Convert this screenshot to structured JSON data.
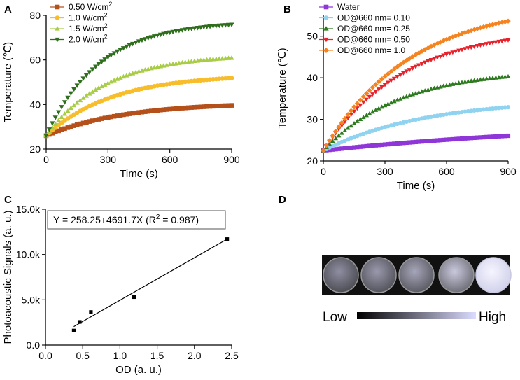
{
  "panel_labels": [
    "A",
    "B",
    "C",
    "D"
  ],
  "chart_data": [
    {
      "panel": "A",
      "type": "scatter",
      "xlabel": "Time (s)",
      "ylabel": "Temperature (℃)",
      "xlim": [
        0,
        900
      ],
      "ylim": [
        20,
        80
      ],
      "xticks": [
        0,
        300,
        600,
        900
      ],
      "yticks": [
        20,
        40,
        60,
        80
      ],
      "legend_position": "top-left",
      "series": [
        {
          "name": "0.50 W/cm",
          "sup": "2",
          "marker": "square",
          "color": "#b5501b",
          "start": 26,
          "end": 41,
          "tau": 380
        },
        {
          "name": "1.0 W/cm",
          "sup": "2",
          "marker": "circle",
          "color": "#f7bd2b",
          "start": 26,
          "end": 53.5,
          "tau": 320
        },
        {
          "name": "1.5 W/cm",
          "sup": "2",
          "marker": "triangle-up",
          "color": "#a9cc47",
          "start": 26,
          "end": 62.5,
          "tau": 290
        },
        {
          "name": "2.0 W/cm",
          "sup": "2",
          "marker": "triangle-down",
          "color": "#2f6e1d",
          "start": 26,
          "end": 77.5,
          "tau": 260
        }
      ]
    },
    {
      "panel": "B",
      "type": "scatter",
      "xlabel": "Time (s)",
      "ylabel": "Temperature (℃)",
      "xlim": [
        0,
        900
      ],
      "ylim": [
        20,
        55
      ],
      "xticks": [
        0,
        300,
        600,
        900
      ],
      "yticks": [
        20,
        30,
        40,
        50
      ],
      "legend_position": "top-left",
      "series": [
        {
          "name": "Water",
          "marker": "square",
          "color": "#8f36d9",
          "start": 22.5,
          "end": 30,
          "tau": 1400
        },
        {
          "name": "OD@660 nm= 0.10",
          "marker": "circle",
          "color": "#8fd3f0",
          "start": 22.5,
          "end": 35,
          "tau": 500
        },
        {
          "name": "OD@660 nm= 0.25",
          "marker": "triangle-up",
          "color": "#2d7a1f",
          "start": 22.5,
          "end": 42,
          "tau": 370
        },
        {
          "name": "OD@660 nm= 0.50",
          "marker": "triangle-down",
          "color": "#e8222a",
          "start": 22.5,
          "end": 52,
          "tau": 390
        },
        {
          "name": "OD@660 nm= 1.0",
          "marker": "diamond",
          "color": "#f5831f",
          "start": 22.5,
          "end": 58,
          "tau": 430
        }
      ]
    },
    {
      "panel": "C",
      "type": "scatter",
      "xlabel": "OD (a. u.)",
      "ylabel": "Photoacoustic Signals (a. u.)",
      "xlim": [
        0,
        2.5
      ],
      "ylim": [
        0,
        15000
      ],
      "xticks": [
        0.0,
        0.5,
        1.0,
        1.5,
        2.0,
        2.5
      ],
      "xtick_labels": [
        "0.0",
        "0.5",
        "1.0",
        "1.5",
        "2.0",
        "2.5"
      ],
      "yticks": [
        0,
        5000,
        10000,
        15000
      ],
      "ytick_labels": [
        "0.0",
        "5.0k",
        "10.0k",
        "15.0k"
      ],
      "points": [
        [
          0.38,
          1600
        ],
        [
          0.46,
          2550
        ],
        [
          0.61,
          3650
        ],
        [
          1.19,
          5300
        ],
        [
          2.44,
          11700
        ]
      ],
      "fit": {
        "intercept": 258.25,
        "slope": 4691.7,
        "x_range": [
          0.38,
          2.44
        ]
      },
      "equation_text": "Y = 258.25+4691.7X  (R",
      "equation_sup": "2",
      "equation_tail": " = 0.987)"
    }
  ],
  "photoacoustic": {
    "intensities": [
      0.45,
      0.52,
      0.6,
      0.82,
      1.0
    ],
    "scale_low": "Low",
    "scale_high": "High",
    "scale_colors": [
      "#000000",
      "#dcdcff"
    ]
  }
}
